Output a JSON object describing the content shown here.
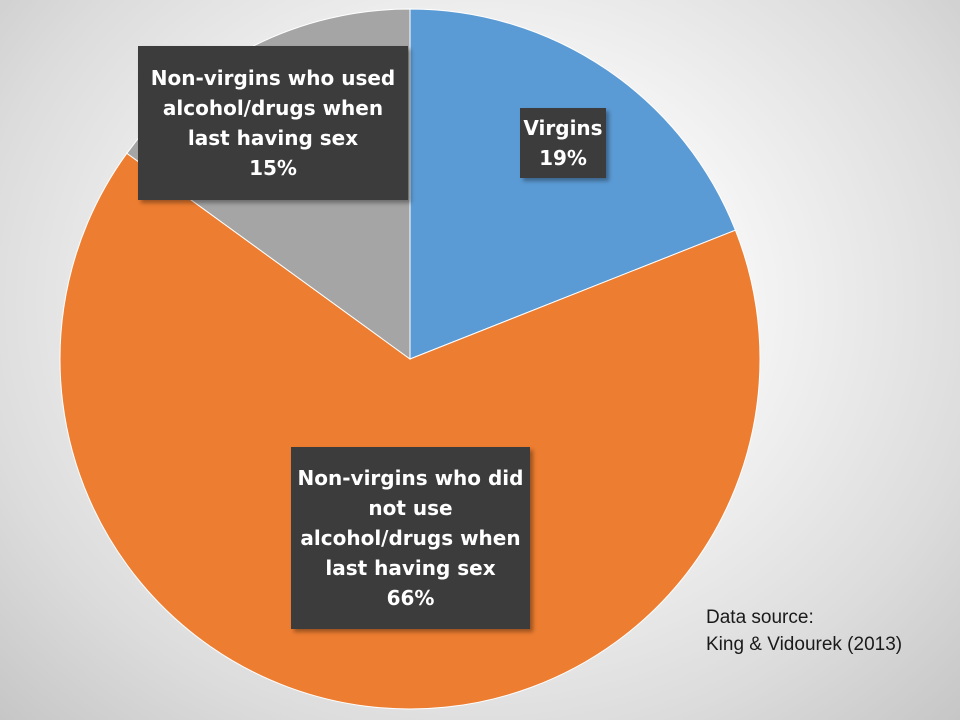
{
  "chart_data": {
    "type": "pie",
    "start_angle_deg": 0,
    "direction": "clockwise",
    "slices": [
      {
        "name": "Virgins",
        "value": 19,
        "label_lines": [
          "Virgins",
          "19%"
        ],
        "color": "#5b9bd5"
      },
      {
        "name": "Non-virgins who did not use alcohol/drugs when last having sex",
        "value": 66,
        "label_lines": [
          "Non-virgins who did",
          "not use",
          "alcohol/drugs when",
          "last having sex",
          "66%"
        ],
        "color": "#ed7d31"
      },
      {
        "name": "Non-virgins who used alcohol/drugs when last having sex",
        "value": 15,
        "label_lines": [
          "Non-virgins who used",
          "alcohol/drugs when",
          "last having sex",
          "15%"
        ],
        "color": "#a5a5a5"
      }
    ],
    "legend": "none",
    "label_style": "callout boxes, dark background, white bold text"
  },
  "source": {
    "line1": "Data source:",
    "line2": "King & Vidourek (2013)"
  }
}
